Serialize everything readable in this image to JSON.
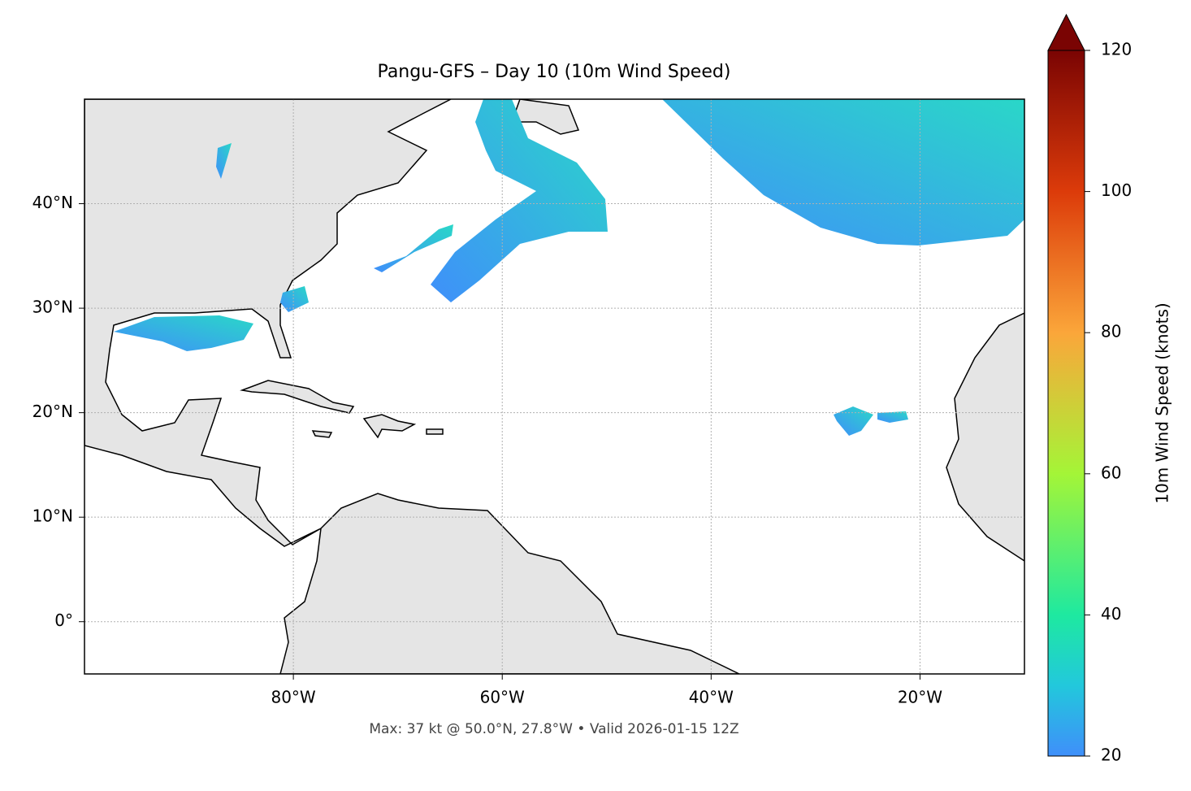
{
  "map": {
    "title": "Pangu-GFS – Day 10 (10m Wind Speed)",
    "note": "Max: 37 kt @ 50.0°N, 27.8°W • Valid 2026-01-15 12Z",
    "lonlim": [
      -100,
      -10
    ],
    "latlim": [
      -5,
      50
    ],
    "lonticks": [
      {
        "value": -80,
        "label": "80°W"
      },
      {
        "value": -60,
        "label": "60°W"
      },
      {
        "value": -40,
        "label": "40°W"
      },
      {
        "value": -20,
        "label": "20°W"
      }
    ],
    "latticks": [
      {
        "value": 0,
        "label": "0°"
      },
      {
        "value": 10,
        "label": "10°N"
      },
      {
        "value": 20,
        "label": "20°N"
      },
      {
        "value": 30,
        "label": "30°N"
      },
      {
        "value": 40,
        "label": "40°N"
      }
    ],
    "grid": true
  },
  "colorbar": {
    "label": "10m Wind Speed (knots)",
    "lim": [
      20,
      120
    ],
    "ticks": [
      20,
      40,
      60,
      80,
      100,
      120
    ],
    "extend": "max"
  }
}
